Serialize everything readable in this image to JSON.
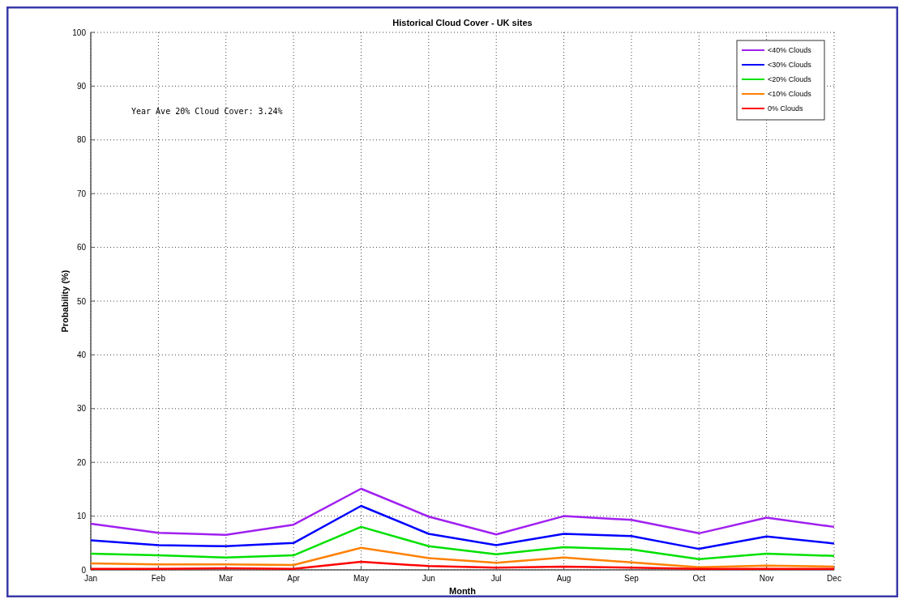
{
  "chart_data": {
    "type": "line",
    "title": "Historical Cloud Cover - UK sites",
    "xlabel": "Month",
    "ylabel": "Probability (%)",
    "categories": [
      "Jan",
      "Feb",
      "Mar",
      "Apr",
      "May",
      "Jun",
      "Jul",
      "Aug",
      "Sep",
      "Oct",
      "Nov",
      "Dec"
    ],
    "series": [
      {
        "name": "<40% Clouds",
        "color": "#a020f0",
        "values": [
          8.6,
          6.9,
          6.5,
          8.4,
          15.1,
          9.9,
          6.6,
          10.0,
          9.3,
          6.8,
          9.7,
          8.0
        ]
      },
      {
        "name": "<30% Clouds",
        "color": "#0000ff",
        "values": [
          5.5,
          4.6,
          4.4,
          5.0,
          11.9,
          6.7,
          4.6,
          6.7,
          6.3,
          3.9,
          6.2,
          4.9
        ]
      },
      {
        "name": "<20% Clouds",
        "color": "#00e000",
        "values": [
          3.0,
          2.7,
          2.3,
          2.7,
          8.0,
          4.4,
          2.9,
          4.2,
          3.8,
          2.0,
          3.0,
          2.6
        ]
      },
      {
        "name": "<10% Clouds",
        "color": "#ff8000",
        "values": [
          1.2,
          1.0,
          1.0,
          0.9,
          4.1,
          2.2,
          1.3,
          2.3,
          1.4,
          0.5,
          0.8,
          0.6
        ]
      },
      {
        "name": "0% Clouds",
        "color": "#ff0000",
        "values": [
          0.2,
          0.2,
          0.3,
          0.2,
          1.5,
          0.7,
          0.4,
          0.6,
          0.4,
          0.2,
          0.2,
          0.2
        ]
      }
    ],
    "ylim": [
      0,
      100
    ],
    "yticks": [
      0,
      10,
      20,
      30,
      40,
      50,
      60,
      70,
      80,
      90,
      100
    ],
    "grid": true,
    "legend": "top right",
    "line_style": "solid",
    "annotations": [
      "Year Ave 20% Cloud Cover: 3.24%"
    ]
  }
}
